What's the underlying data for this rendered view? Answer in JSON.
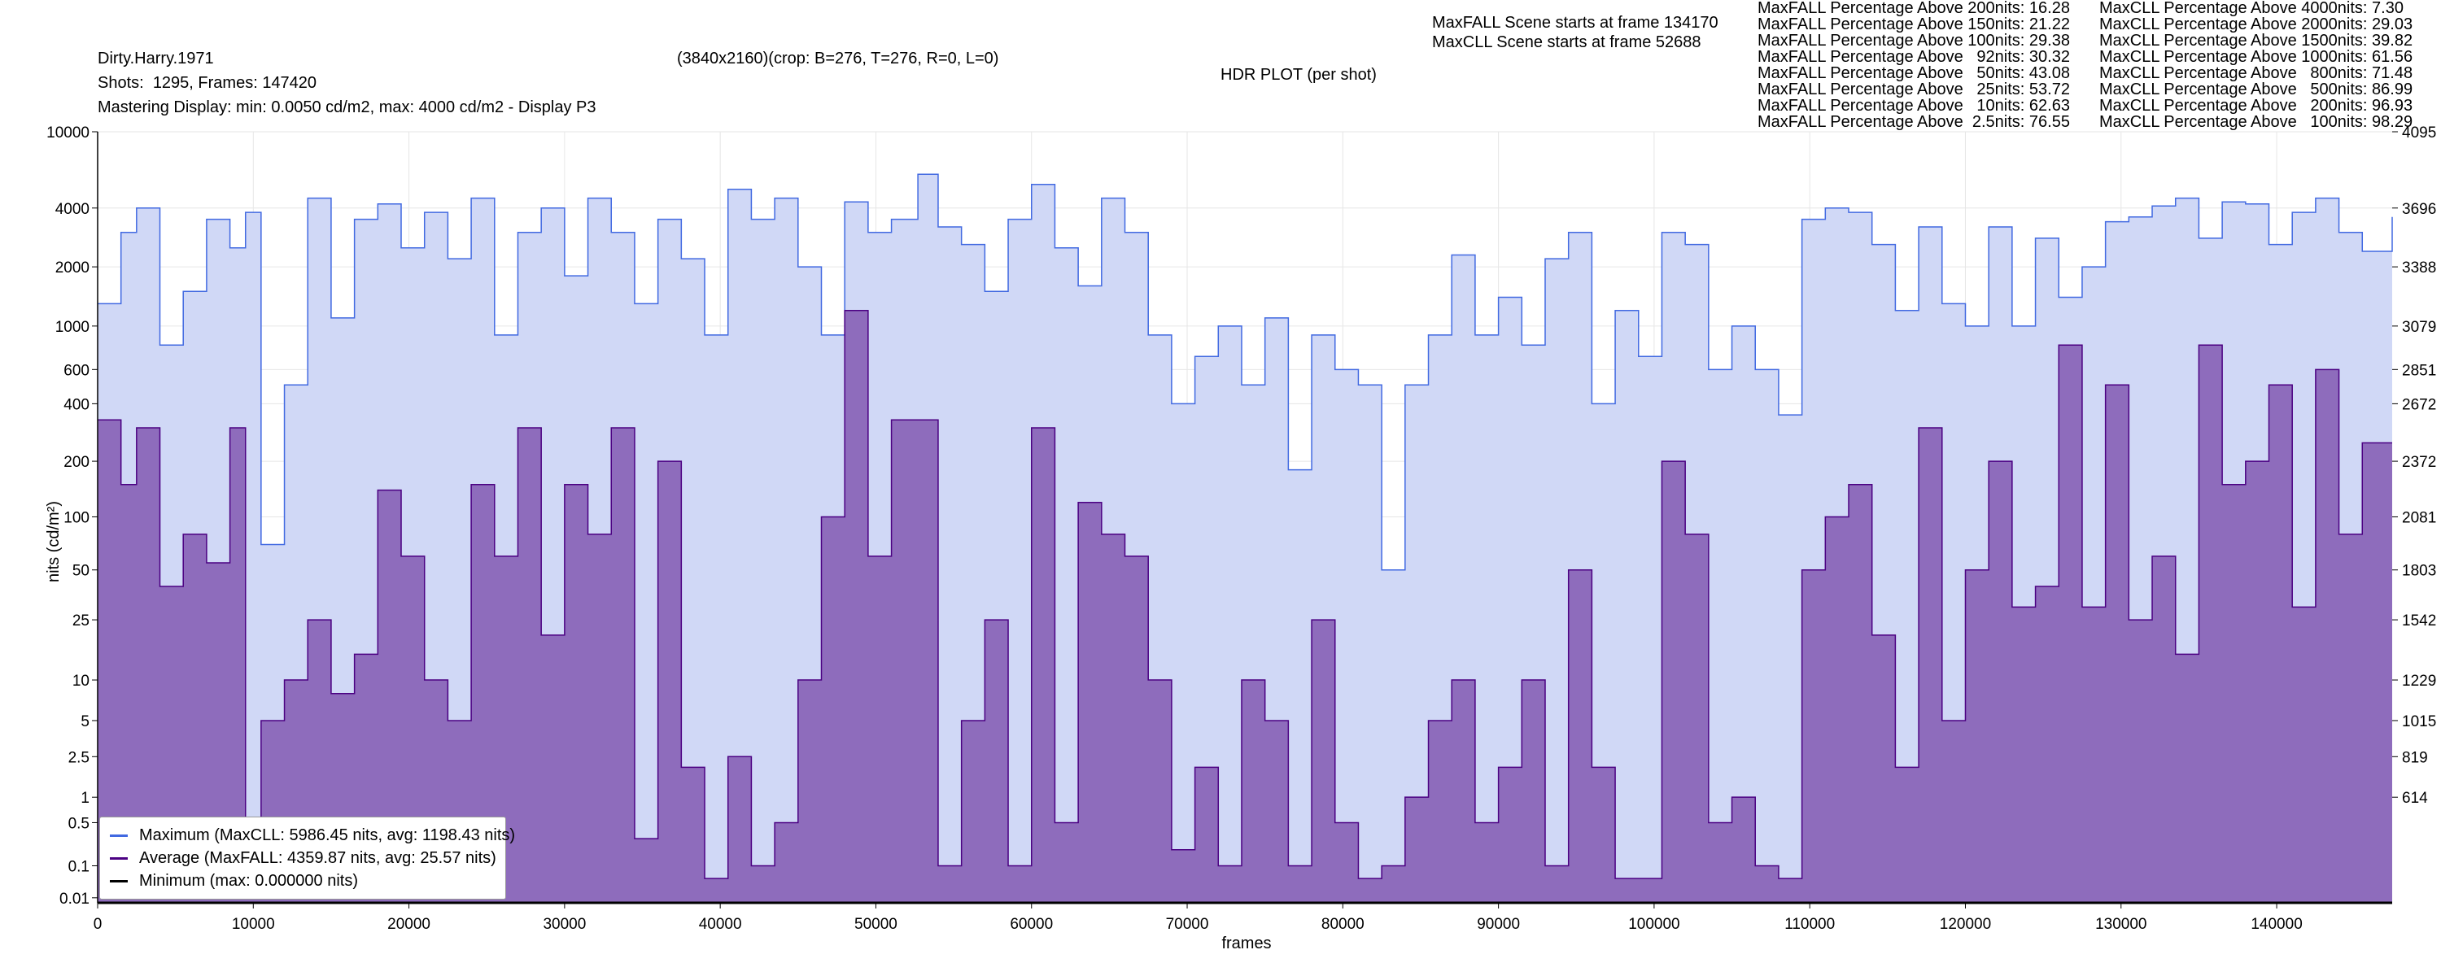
{
  "header": {
    "movie_title": "Dirty.Harry.1971",
    "shots_frames": "Shots:  1295, Frames: 147420",
    "mastering_display": "Mastering Display: min: 0.0050 cd/m2, max: 4000 cd/m2 - Display P3",
    "resolution_crop": "(3840x2160)(crop: B=276, T=276, R=0, L=0)",
    "plot_title": "HDR PLOT (per shot)",
    "maxfall_scene": "MaxFALL Scene starts at frame 134170",
    "maxcll_scene": "MaxCLL Scene starts at frame 52688"
  },
  "stats": {
    "maxfall": [
      "MaxFALL Percentage Above 200nits: 16.28",
      "MaxFALL Percentage Above 150nits: 21.22",
      "MaxFALL Percentage Above 100nits: 29.38",
      "MaxFALL Percentage Above   92nits: 30.32",
      "MaxFALL Percentage Above   50nits: 43.08",
      "MaxFALL Percentage Above   25nits: 53.72",
      "MaxFALL Percentage Above   10nits: 62.63",
      "MaxFALL Percentage Above  2.5nits: 76.55"
    ],
    "maxcll": [
      "MaxCLL Percentage Above 4000nits: 7.30",
      "MaxCLL Percentage Above 2000nits: 29.03",
      "MaxCLL Percentage Above 1500nits: 39.82",
      "MaxCLL Percentage Above 1000nits: 61.56",
      "MaxCLL Percentage Above   800nits: 71.48",
      "MaxCLL Percentage Above   500nits: 86.99",
      "MaxCLL Percentage Above   200nits: 96.93",
      "MaxCLL Percentage Above   100nits: 98.29"
    ]
  },
  "legend": {
    "maximum": "Maximum (MaxCLL: 5986.45 nits, avg: 1198.43 nits)",
    "average": "Average (MaxFALL: 4359.87 nits, avg: 25.57 nits)",
    "minimum": "Minimum (max: 0.000000 nits)"
  },
  "colors": {
    "maximum_line": "#4169e1",
    "maximum_fill": "#d0d8f6",
    "average_line": "#4b0082",
    "average_fill": "#8e6cbc",
    "minimum_line": "#000000",
    "grid": "#e6e6e6"
  },
  "chart_data": {
    "type": "area",
    "xlabel": "frames",
    "ylabel": "nits (cd/m²)",
    "xlim": [
      0,
      147420
    ],
    "ylim": [
      0.005,
      10000
    ],
    "yscale": "pq",
    "grid": true,
    "legend_position": "bottom-left",
    "x_ticks": [
      0,
      10000,
      20000,
      30000,
      40000,
      50000,
      60000,
      70000,
      80000,
      90000,
      100000,
      110000,
      120000,
      130000,
      140000
    ],
    "y_ticks": [
      0.01,
      0.1,
      0.5,
      1,
      2.5,
      5,
      10,
      25,
      50,
      100,
      200,
      400,
      600,
      1000,
      2000,
      4000,
      10000
    ],
    "y_tick_labels": [
      "0.01",
      "0.1",
      "0.5",
      "1",
      "2.5",
      "5",
      "10",
      "25",
      "50",
      "100",
      "200",
      "400",
      "600",
      "1000",
      "2000",
      "4000",
      "10000"
    ],
    "right_axis_ticks": [
      {
        "nits": 10000,
        "label": "4095"
      },
      {
        "nits": 4000,
        "label": "3696"
      },
      {
        "nits": 2000,
        "label": "3388"
      },
      {
        "nits": 1000,
        "label": "3079"
      },
      {
        "nits": 600,
        "label": "2851"
      },
      {
        "nits": 400,
        "label": "2672"
      },
      {
        "nits": 200,
        "label": "2372"
      },
      {
        "nits": 100,
        "label": "2081"
      },
      {
        "nits": 50,
        "label": "1803"
      },
      {
        "nits": 25,
        "label": "1542"
      },
      {
        "nits": 10,
        "label": "1229"
      },
      {
        "nits": 5,
        "label": "1015"
      },
      {
        "nits": 2.5,
        "label": "819"
      },
      {
        "nits": 1,
        "label": "614"
      }
    ],
    "series": [
      {
        "name": "Maximum (MaxCLL: 5986.45 nits, avg: 1198.43 nits)",
        "x": [
          0,
          1500,
          2500,
          4000,
          5500,
          7000,
          8500,
          9500,
          10500,
          12000,
          13500,
          15000,
          16500,
          18000,
          19500,
          21000,
          22500,
          24000,
          25500,
          27000,
          28500,
          30000,
          31500,
          33000,
          34500,
          36000,
          37500,
          39000,
          40500,
          42000,
          43500,
          45000,
          46500,
          48000,
          49500,
          51000,
          52700,
          54000,
          55500,
          57000,
          58500,
          60000,
          61500,
          63000,
          64500,
          66000,
          67500,
          69000,
          70500,
          72000,
          73500,
          75000,
          76500,
          78000,
          79500,
          81000,
          82500,
          84000,
          85500,
          87000,
          88500,
          90000,
          91500,
          93000,
          94500,
          96000,
          97500,
          99000,
          100500,
          102000,
          103500,
          105000,
          106500,
          108000,
          109500,
          111000,
          112500,
          114000,
          115500,
          117000,
          118500,
          120000,
          121500,
          123000,
          124500,
          126000,
          127500,
          129000,
          130500,
          132000,
          133500,
          135000,
          136500,
          138000,
          139500,
          141000,
          142500,
          144000,
          145500,
          147420
        ],
        "values": [
          1300,
          3000,
          4000,
          800,
          1500,
          3500,
          2500,
          3800,
          70,
          500,
          4500,
          1100,
          3500,
          4200,
          2500,
          3800,
          2200,
          4500,
          900,
          3000,
          4000,
          1800,
          4500,
          3000,
          1300,
          3500,
          2200,
          900,
          5000,
          3500,
          4500,
          2000,
          900,
          4300,
          3000,
          3500,
          5986,
          3200,
          2600,
          1500,
          3500,
          5300,
          2500,
          1600,
          4500,
          3000,
          900,
          400,
          700,
          1000,
          500,
          1100,
          180,
          900,
          600,
          500,
          50,
          500,
          900,
          2300,
          900,
          1400,
          800,
          2200,
          3000,
          400,
          1200,
          700,
          3000,
          2600,
          600,
          1000,
          600,
          350,
          3500,
          4000,
          3800,
          2600,
          1200,
          3200,
          1300,
          1000,
          3200,
          1000,
          2800,
          1400,
          2000,
          3400,
          3600,
          4100,
          4500,
          2800,
          4300,
          4200,
          2600,
          3800,
          4500,
          3000,
          2400,
          3600
        ]
      },
      {
        "name": "Average (MaxFALL: 4359.87 nits, avg: 25.57 nits)",
        "x": [
          0,
          1500,
          2500,
          4000,
          5500,
          7000,
          8500,
          9500,
          10500,
          12000,
          13500,
          15000,
          16500,
          18000,
          19500,
          21000,
          22500,
          24000,
          25500,
          27000,
          28500,
          30000,
          31500,
          33000,
          34500,
          36000,
          37500,
          39000,
          40500,
          42000,
          43500,
          45000,
          46500,
          48000,
          49500,
          51000,
          52700,
          54000,
          55500,
          57000,
          58500,
          60000,
          61500,
          63000,
          64500,
          66000,
          67500,
          69000,
          70500,
          72000,
          73500,
          75000,
          76500,
          78000,
          79500,
          81000,
          82500,
          84000,
          85500,
          87000,
          88500,
          90000,
          91500,
          93000,
          94500,
          96000,
          97500,
          99000,
          100500,
          102000,
          103500,
          105000,
          106500,
          108000,
          109500,
          111000,
          112500,
          114000,
          115500,
          117000,
          118500,
          120000,
          121500,
          123000,
          124500,
          126000,
          127500,
          129000,
          130500,
          132000,
          133500,
          135000,
          136500,
          138000,
          139500,
          141000,
          142500,
          144000,
          145500,
          147420
        ],
        "values": [
          330,
          150,
          300,
          40,
          80,
          55,
          300,
          0.02,
          5,
          10,
          25,
          8,
          15,
          140,
          60,
          10,
          5,
          150,
          60,
          300,
          20,
          150,
          80,
          300,
          0.3,
          200,
          2,
          0.05,
          2.5,
          0.1,
          0.5,
          10,
          100,
          1200,
          60,
          330,
          330,
          0.1,
          5,
          25,
          0.1,
          300,
          0.5,
          120,
          80,
          60,
          10,
          0.2,
          2,
          0.1,
          10,
          5,
          0.1,
          25,
          0.5,
          0.05,
          0.1,
          1,
          5,
          10,
          0.5,
          2,
          10,
          0.1,
          50,
          2,
          0.05,
          0.05,
          200,
          80,
          0.5,
          1,
          0.1,
          0.05,
          50,
          100,
          150,
          20,
          2,
          300,
          5,
          50,
          200,
          30,
          40,
          800,
          30,
          500,
          25,
          60,
          15,
          800,
          150,
          200,
          500,
          30,
          600,
          80,
          250,
          250
        ]
      },
      {
        "name": "Minimum (max: 0.000000 nits)",
        "x": [
          0,
          147420
        ],
        "values": [
          0,
          0
        ]
      }
    ]
  }
}
